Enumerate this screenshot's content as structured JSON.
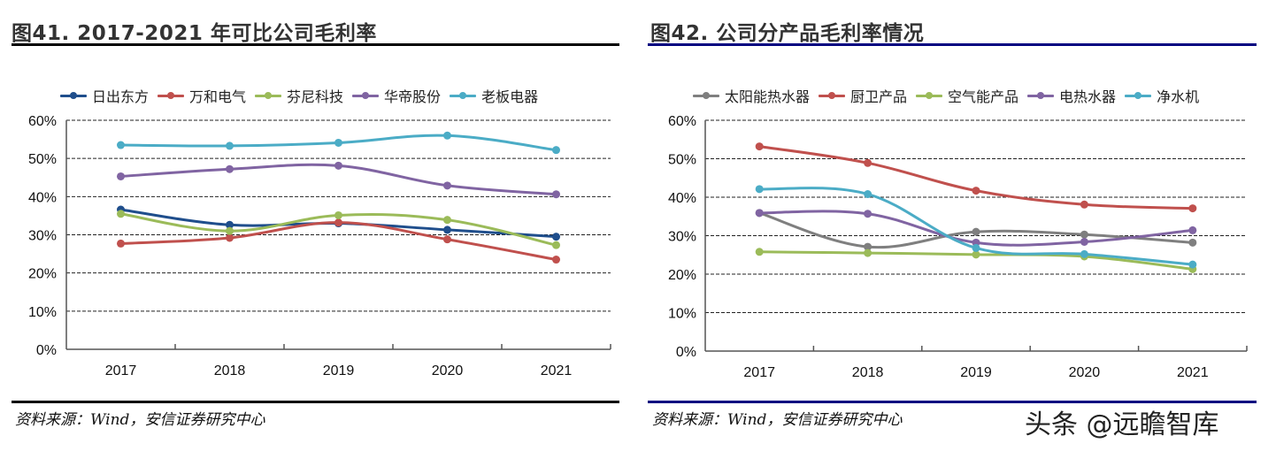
{
  "colors": {
    "title_rule_left": "#000000",
    "title_rule_right": "#000080",
    "grid": "#000000",
    "axis": "#555555"
  },
  "watermark": "头条 @远瞻智库",
  "chart_data": [
    {
      "type": "line",
      "figure_label": "图41.",
      "title": "图41. 2017-2021 年可比公司毛利率",
      "xlabel": "",
      "ylabel": "",
      "categories": [
        "2017",
        "2018",
        "2019",
        "2020",
        "2021"
      ],
      "ylim": [
        0,
        60
      ],
      "yticks": [
        "0%",
        "10%",
        "20%",
        "30%",
        "40%",
        "50%",
        "60%"
      ],
      "grid": true,
      "smooth": true,
      "legend": "top",
      "source": "资料来源：Wind，安信证券研究中心",
      "series": [
        {
          "name": "日出东方",
          "color": "#1f4e8c",
          "values": [
            36.6,
            32.6,
            33.0,
            31.3,
            29.5
          ]
        },
        {
          "name": "万和电气",
          "color": "#c0504d",
          "values": [
            27.7,
            29.2,
            33.2,
            28.8,
            23.5
          ]
        },
        {
          "name": "芬尼科技",
          "color": "#9bbb59",
          "values": [
            35.5,
            31.0,
            35.1,
            33.9,
            27.3
          ]
        },
        {
          "name": "华帝股份",
          "color": "#8064a2",
          "values": [
            45.3,
            47.2,
            48.1,
            42.9,
            40.6
          ]
        },
        {
          "name": "老板电器",
          "color": "#4bacc6",
          "values": [
            53.5,
            53.3,
            54.1,
            56.0,
            52.2
          ]
        }
      ]
    },
    {
      "type": "line",
      "figure_label": "图42.",
      "title": "图42. 公司分产品毛利率情况",
      "xlabel": "",
      "ylabel": "",
      "categories": [
        "2017",
        "2018",
        "2019",
        "2020",
        "2021"
      ],
      "ylim": [
        0,
        60
      ],
      "yticks": [
        "0%",
        "10%",
        "20%",
        "30%",
        "40%",
        "50%",
        "60%"
      ],
      "grid": true,
      "smooth": true,
      "legend": "top",
      "source": "资料来源：Wind，安信证券研究中心",
      "series": [
        {
          "name": "太阳能热水器",
          "color": "#7f7f7f",
          "values": [
            35.9,
            27.1,
            31.0,
            30.3,
            28.2
          ]
        },
        {
          "name": "厨卫产品",
          "color": "#c0504d",
          "values": [
            53.2,
            48.9,
            41.7,
            38.1,
            37.1
          ]
        },
        {
          "name": "空气能产品",
          "color": "#9bbb59",
          "values": [
            25.8,
            25.5,
            25.1,
            24.6,
            21.3
          ]
        },
        {
          "name": "电热水器",
          "color": "#8064a2",
          "values": [
            35.9,
            35.7,
            28.2,
            28.4,
            31.4
          ]
        },
        {
          "name": "净水机",
          "color": "#4bacc6",
          "values": [
            42.1,
            40.8,
            26.8,
            25.2,
            22.5
          ]
        }
      ]
    }
  ]
}
